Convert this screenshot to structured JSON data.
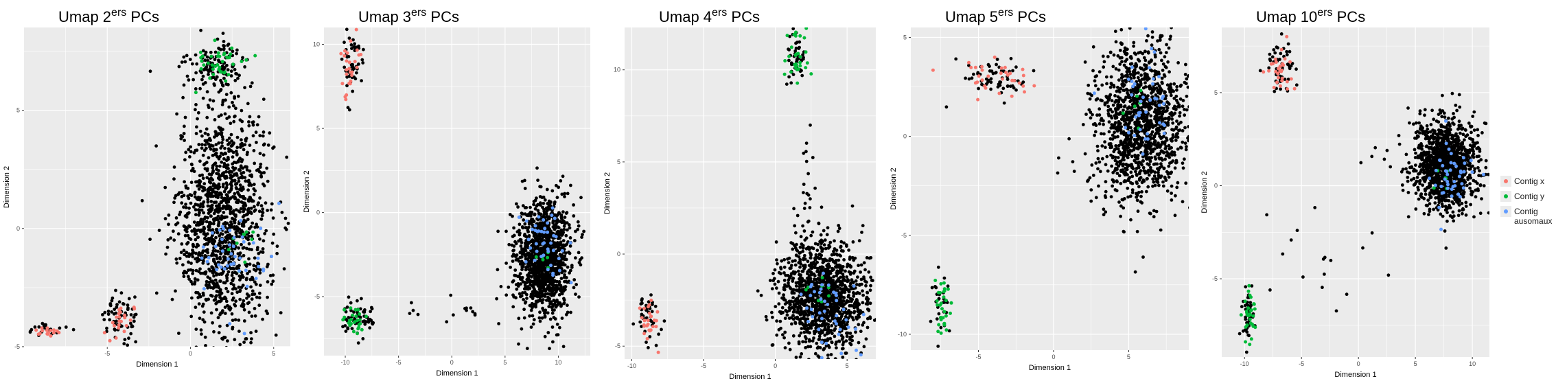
{
  "chart_data": [
    {
      "type": "scatter",
      "title": "Umap 2ers PCs",
      "title_main": "Umap 2",
      "title_sup": "ers",
      "title_tail": " PCs",
      "xlabel": "Dimension 1",
      "ylabel": "Dimension 2",
      "xlim": [
        -10,
        6
      ],
      "ylim": [
        -5,
        8.5
      ],
      "xticks": [
        -5,
        0,
        5
      ],
      "yticks": [
        -5,
        0,
        5
      ],
      "background_blobs": [
        {
          "cx": 2.0,
          "cy": 0.3,
          "sx": 1.4,
          "sy": 2.4,
          "n": 1300
        },
        {
          "cx": 1.6,
          "cy": 6.9,
          "sx": 0.9,
          "sy": 0.45,
          "n": 120
        },
        {
          "cx": 1.9,
          "cy": 4.5,
          "sx": 0.3,
          "sy": 1.2,
          "n": 25
        },
        {
          "cx": -4.2,
          "cy": -3.8,
          "sx": 0.55,
          "sy": 0.5,
          "n": 70
        },
        {
          "cx": -8.5,
          "cy": -4.3,
          "sx": 0.6,
          "sy": 0.15,
          "n": 22
        }
      ],
      "series": [
        {
          "name": "Contig x",
          "color": "#f8766d",
          "clusters": [
            {
              "cx": -8.6,
              "cy": -4.35,
              "sx": 0.5,
              "sy": 0.12,
              "n": 16
            },
            {
              "cx": -4.2,
              "cy": -3.9,
              "sx": 0.4,
              "sy": 0.35,
              "n": 22
            }
          ]
        },
        {
          "name": "Contig y",
          "color": "#00ba38",
          "clusters": [
            {
              "cx": 1.8,
              "cy": 6.9,
              "sx": 0.8,
              "sy": 0.45,
              "n": 40
            },
            {
              "cx": 3.2,
              "cy": -0.7,
              "sx": 0.5,
              "sy": 0.4,
              "n": 10
            }
          ]
        },
        {
          "name": "Contig ausomaux",
          "color": "#619cff",
          "clusters": [
            {
              "cx": 2.6,
              "cy": -1.1,
              "sx": 1.1,
              "sy": 1.1,
              "n": 45
            }
          ]
        }
      ]
    },
    {
      "type": "scatter",
      "title": "Umap 3ers PCs",
      "title_main": "Umap 3",
      "title_sup": "ers",
      "title_tail": " PCs",
      "xlabel": "Dimension 1",
      "ylabel": "Dimension 2",
      "xlim": [
        -12,
        13
      ],
      "ylim": [
        -8.5,
        11
      ],
      "xticks": [
        -10,
        -5,
        0,
        5,
        10
      ],
      "yticks": [
        -5,
        0,
        5,
        10
      ],
      "background_blobs": [
        {
          "cx": 8.6,
          "cy": -2.7,
          "sx": 1.3,
          "sy": 1.7,
          "n": 1300
        },
        {
          "cx": -9.4,
          "cy": 8.7,
          "sx": 0.5,
          "sy": 1.0,
          "n": 50
        },
        {
          "cx": -9.0,
          "cy": -6.2,
          "sx": 0.8,
          "sy": 0.5,
          "n": 60
        },
        {
          "cx": -1.0,
          "cy": -5.8,
          "sx": 3.2,
          "sy": 0.6,
          "n": 16
        }
      ],
      "series": [
        {
          "name": "Contig x",
          "color": "#f8766d",
          "clusters": [
            {
              "cx": -9.4,
              "cy": 8.6,
              "sx": 0.45,
              "sy": 0.9,
              "n": 26
            }
          ]
        },
        {
          "name": "Contig y",
          "color": "#00ba38",
          "clusters": [
            {
              "cx": -9.1,
              "cy": -6.4,
              "sx": 0.6,
              "sy": 0.4,
              "n": 28
            },
            {
              "cx": 8.4,
              "cy": -2.8,
              "sx": 0.5,
              "sy": 0.4,
              "n": 6
            }
          ]
        },
        {
          "name": "Contig ausomaux",
          "color": "#619cff",
          "clusters": [
            {
              "cx": 8.9,
              "cy": -1.8,
              "sx": 1.0,
              "sy": 1.0,
              "n": 42
            }
          ]
        }
      ]
    },
    {
      "type": "scatter",
      "title": "Umap 4ers PCs",
      "title_main": "Umap 4",
      "title_sup": "ers",
      "title_tail": " PCs",
      "xlabel": "Dimension 1",
      "ylabel": "Dimension 2",
      "xlim": [
        -10.5,
        7
      ],
      "ylim": [
        -5.7,
        12.3
      ],
      "xticks": [
        -10,
        -5,
        0,
        5
      ],
      "yticks": [
        -5,
        0,
        5,
        10
      ],
      "background_blobs": [
        {
          "cx": 3.3,
          "cy": -2.3,
          "sx": 1.5,
          "sy": 1.5,
          "n": 1300
        },
        {
          "cx": 1.5,
          "cy": 10.6,
          "sx": 0.35,
          "sy": 0.9,
          "n": 50
        },
        {
          "cx": -8.8,
          "cy": -3.6,
          "sx": 0.4,
          "sy": 0.7,
          "n": 40
        },
        {
          "cx": 2.1,
          "cy": 3.5,
          "sx": 0.35,
          "sy": 2.2,
          "n": 24
        }
      ],
      "series": [
        {
          "name": "Contig x",
          "color": "#f8766d",
          "clusters": [
            {
              "cx": -8.8,
              "cy": -3.7,
              "sx": 0.4,
              "sy": 0.7,
              "n": 26
            }
          ]
        },
        {
          "name": "Contig y",
          "color": "#00ba38",
          "clusters": [
            {
              "cx": 1.5,
              "cy": 10.6,
              "sx": 0.35,
              "sy": 0.9,
              "n": 30
            },
            {
              "cx": 3.2,
              "cy": -2.0,
              "sx": 0.5,
              "sy": 0.5,
              "n": 8
            }
          ]
        },
        {
          "name": "Contig ausomaux",
          "color": "#619cff",
          "clusters": [
            {
              "cx": 4.0,
              "cy": -3.3,
              "sx": 1.0,
              "sy": 1.2,
              "n": 42
            }
          ]
        }
      ]
    },
    {
      "type": "scatter",
      "title": "Umap 5ers PCs",
      "title_main": "Umap 5",
      "title_sup": "ers",
      "title_tail": " PCs",
      "xlabel": "Dimension 1",
      "ylabel": "Dimension 2",
      "xlim": [
        -9.5,
        9
      ],
      "ylim": [
        -10.8,
        5.5
      ],
      "xticks": [
        -5,
        0,
        5
      ],
      "yticks": [
        -10,
        -5,
        0,
        5
      ],
      "background_blobs": [
        {
          "cx": 5.8,
          "cy": 0.6,
          "sx": 1.5,
          "sy": 2.0,
          "n": 1300
        },
        {
          "cx": -3.7,
          "cy": 3.0,
          "sx": 1.3,
          "sy": 0.5,
          "n": 60
        },
        {
          "cx": -7.4,
          "cy": -8.6,
          "sx": 0.3,
          "sy": 0.9,
          "n": 30
        },
        {
          "cx": 2.5,
          "cy": -1.8,
          "sx": 1.0,
          "sy": 0.8,
          "n": 14
        }
      ],
      "series": [
        {
          "name": "Contig x",
          "color": "#f8766d",
          "clusters": [
            {
              "cx": -3.7,
              "cy": 3.0,
              "sx": 1.2,
              "sy": 0.5,
              "n": 32
            }
          ]
        },
        {
          "name": "Contig y",
          "color": "#00ba38",
          "clusters": [
            {
              "cx": -7.4,
              "cy": -8.6,
              "sx": 0.3,
              "sy": 0.9,
              "n": 30
            },
            {
              "cx": 5.5,
              "cy": 1.5,
              "sx": 0.4,
              "sy": 0.6,
              "n": 6
            }
          ]
        },
        {
          "name": "Contig ausomaux",
          "color": "#619cff",
          "clusters": [
            {
              "cx": 6.3,
              "cy": 1.8,
              "sx": 1.0,
              "sy": 1.4,
              "n": 40
            }
          ]
        }
      ]
    },
    {
      "type": "scatter",
      "title": "Umap 10ers PCs",
      "title_main": "Umap 10",
      "title_sup": "ers",
      "title_tail": " PCs",
      "xlabel": "Dimension 1",
      "ylabel": "Dimension 2",
      "xlim": [
        -12,
        11.5
      ],
      "ylim": [
        -9.2,
        8.5
      ],
      "xticks": [
        -10,
        -5,
        0,
        5,
        10
      ],
      "yticks": [
        -5,
        0,
        5
      ],
      "background_blobs": [
        {
          "cx": 7.6,
          "cy": 1.1,
          "sx": 1.3,
          "sy": 1.2,
          "n": 1300
        },
        {
          "cx": -6.8,
          "cy": 6.3,
          "sx": 0.6,
          "sy": 0.6,
          "n": 55
        },
        {
          "cx": -9.7,
          "cy": -7.1,
          "sx": 0.3,
          "sy": 0.8,
          "n": 40
        },
        {
          "cx": -3.5,
          "cy": -4.2,
          "sx": 3.0,
          "sy": 1.5,
          "n": 18
        },
        {
          "cx": 2.5,
          "cy": 1.6,
          "sx": 1.6,
          "sy": 0.6,
          "n": 12
        }
      ],
      "series": [
        {
          "name": "Contig x",
          "color": "#f8766d",
          "clusters": [
            {
              "cx": -6.8,
              "cy": 6.3,
              "sx": 0.6,
              "sy": 0.6,
              "n": 30
            }
          ]
        },
        {
          "name": "Contig y",
          "color": "#00ba38",
          "clusters": [
            {
              "cx": -9.7,
              "cy": -7.1,
              "sx": 0.3,
              "sy": 0.8,
              "n": 30
            },
            {
              "cx": 7.5,
              "cy": 0.6,
              "sx": 0.5,
              "sy": 0.4,
              "n": 6
            }
          ]
        },
        {
          "name": "Contig ausomaux",
          "color": "#619cff",
          "clusters": [
            {
              "cx": 8.2,
              "cy": 0.2,
              "sx": 1.0,
              "sy": 1.1,
              "n": 44
            }
          ]
        }
      ]
    }
  ],
  "legend": {
    "items": [
      {
        "label": "Contig x",
        "color": "#f8766d"
      },
      {
        "label": "Contig y",
        "color": "#00ba38"
      },
      {
        "label": "Contig ausomaux",
        "color": "#619cff"
      }
    ]
  },
  "style": {
    "panel_background": "#ebebeb",
    "grid_color": "#ffffff",
    "point_color": "#000000"
  }
}
